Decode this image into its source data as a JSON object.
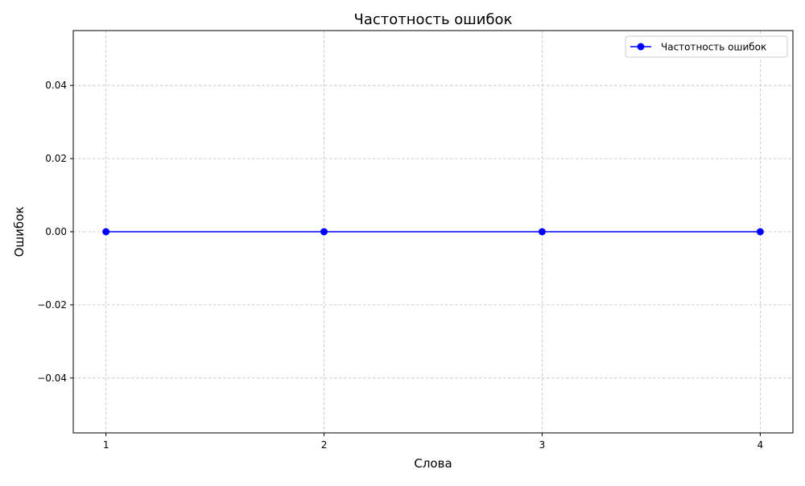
{
  "chart_data": {
    "type": "line",
    "title": "Частотность ошибок",
    "xlabel": "Слова",
    "ylabel": "Ошибок",
    "x": [
      1,
      2,
      3,
      4
    ],
    "x_tick_labels": [
      "1",
      "2",
      "3",
      "4"
    ],
    "xlim": [
      0.85,
      4.15
    ],
    "ylim": [
      -0.055,
      0.055
    ],
    "y_ticks": [
      -0.04,
      -0.02,
      0.0,
      0.02,
      0.04
    ],
    "y_tick_labels": [
      "−0.04",
      "−0.02",
      "0.00",
      "0.02",
      "0.04"
    ],
    "series": [
      {
        "name": "Частотность ошибок",
        "values": [
          0,
          0,
          0,
          0
        ],
        "color": "#0000ff",
        "marker": "circle"
      }
    ],
    "grid": true,
    "grid_style": "dashed",
    "grid_color": "#c0c0c0",
    "legend_position": "top-right"
  }
}
